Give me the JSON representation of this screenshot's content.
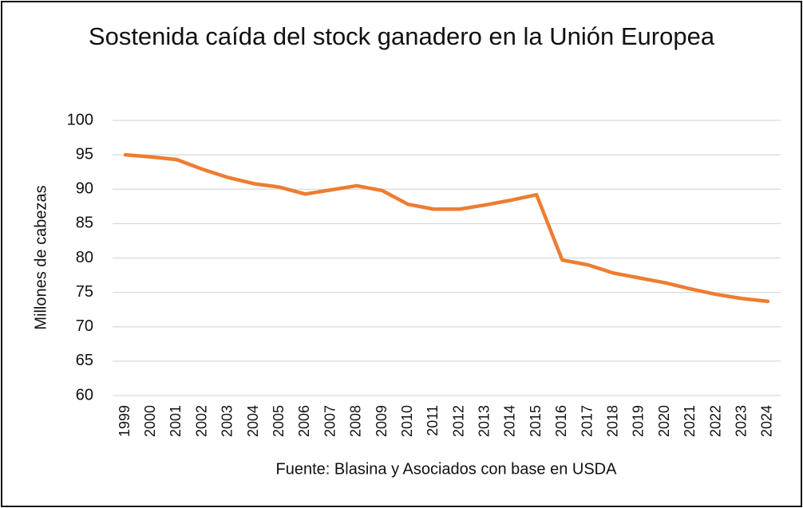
{
  "chart_data": {
    "type": "line",
    "title": "Sostenida caída del stock ganadero en la Unión Europea",
    "y_label": "Millones de cabezas",
    "x_label": "Fuente: Blasina y Asociados con base en USDA",
    "categories": [
      "1999",
      "2000",
      "2001",
      "2002",
      "2003",
      "2004",
      "2005",
      "2006",
      "2007",
      "2008",
      "2009",
      "2010",
      "2011",
      "2012",
      "2013",
      "2014",
      "2015",
      "2016",
      "2017",
      "2018",
      "2019",
      "2020",
      "2021",
      "2022",
      "2023",
      "2024"
    ],
    "series": [
      {
        "color": "#ed7d31",
        "values": [
          95.0,
          94.7,
          94.3,
          92.9,
          91.7,
          90.8,
          90.3,
          89.3,
          89.9,
          90.5,
          89.8,
          87.8,
          87.1,
          87.1,
          87.7,
          88.4,
          89.2,
          79.7,
          79.0,
          77.8,
          77.1,
          76.4,
          75.5,
          74.7,
          74.1,
          73.7
        ]
      }
    ],
    "ylim": [
      60,
      100
    ],
    "yticks": [
      60,
      65,
      70,
      75,
      80,
      85,
      90,
      95,
      100
    ],
    "grid": true
  }
}
